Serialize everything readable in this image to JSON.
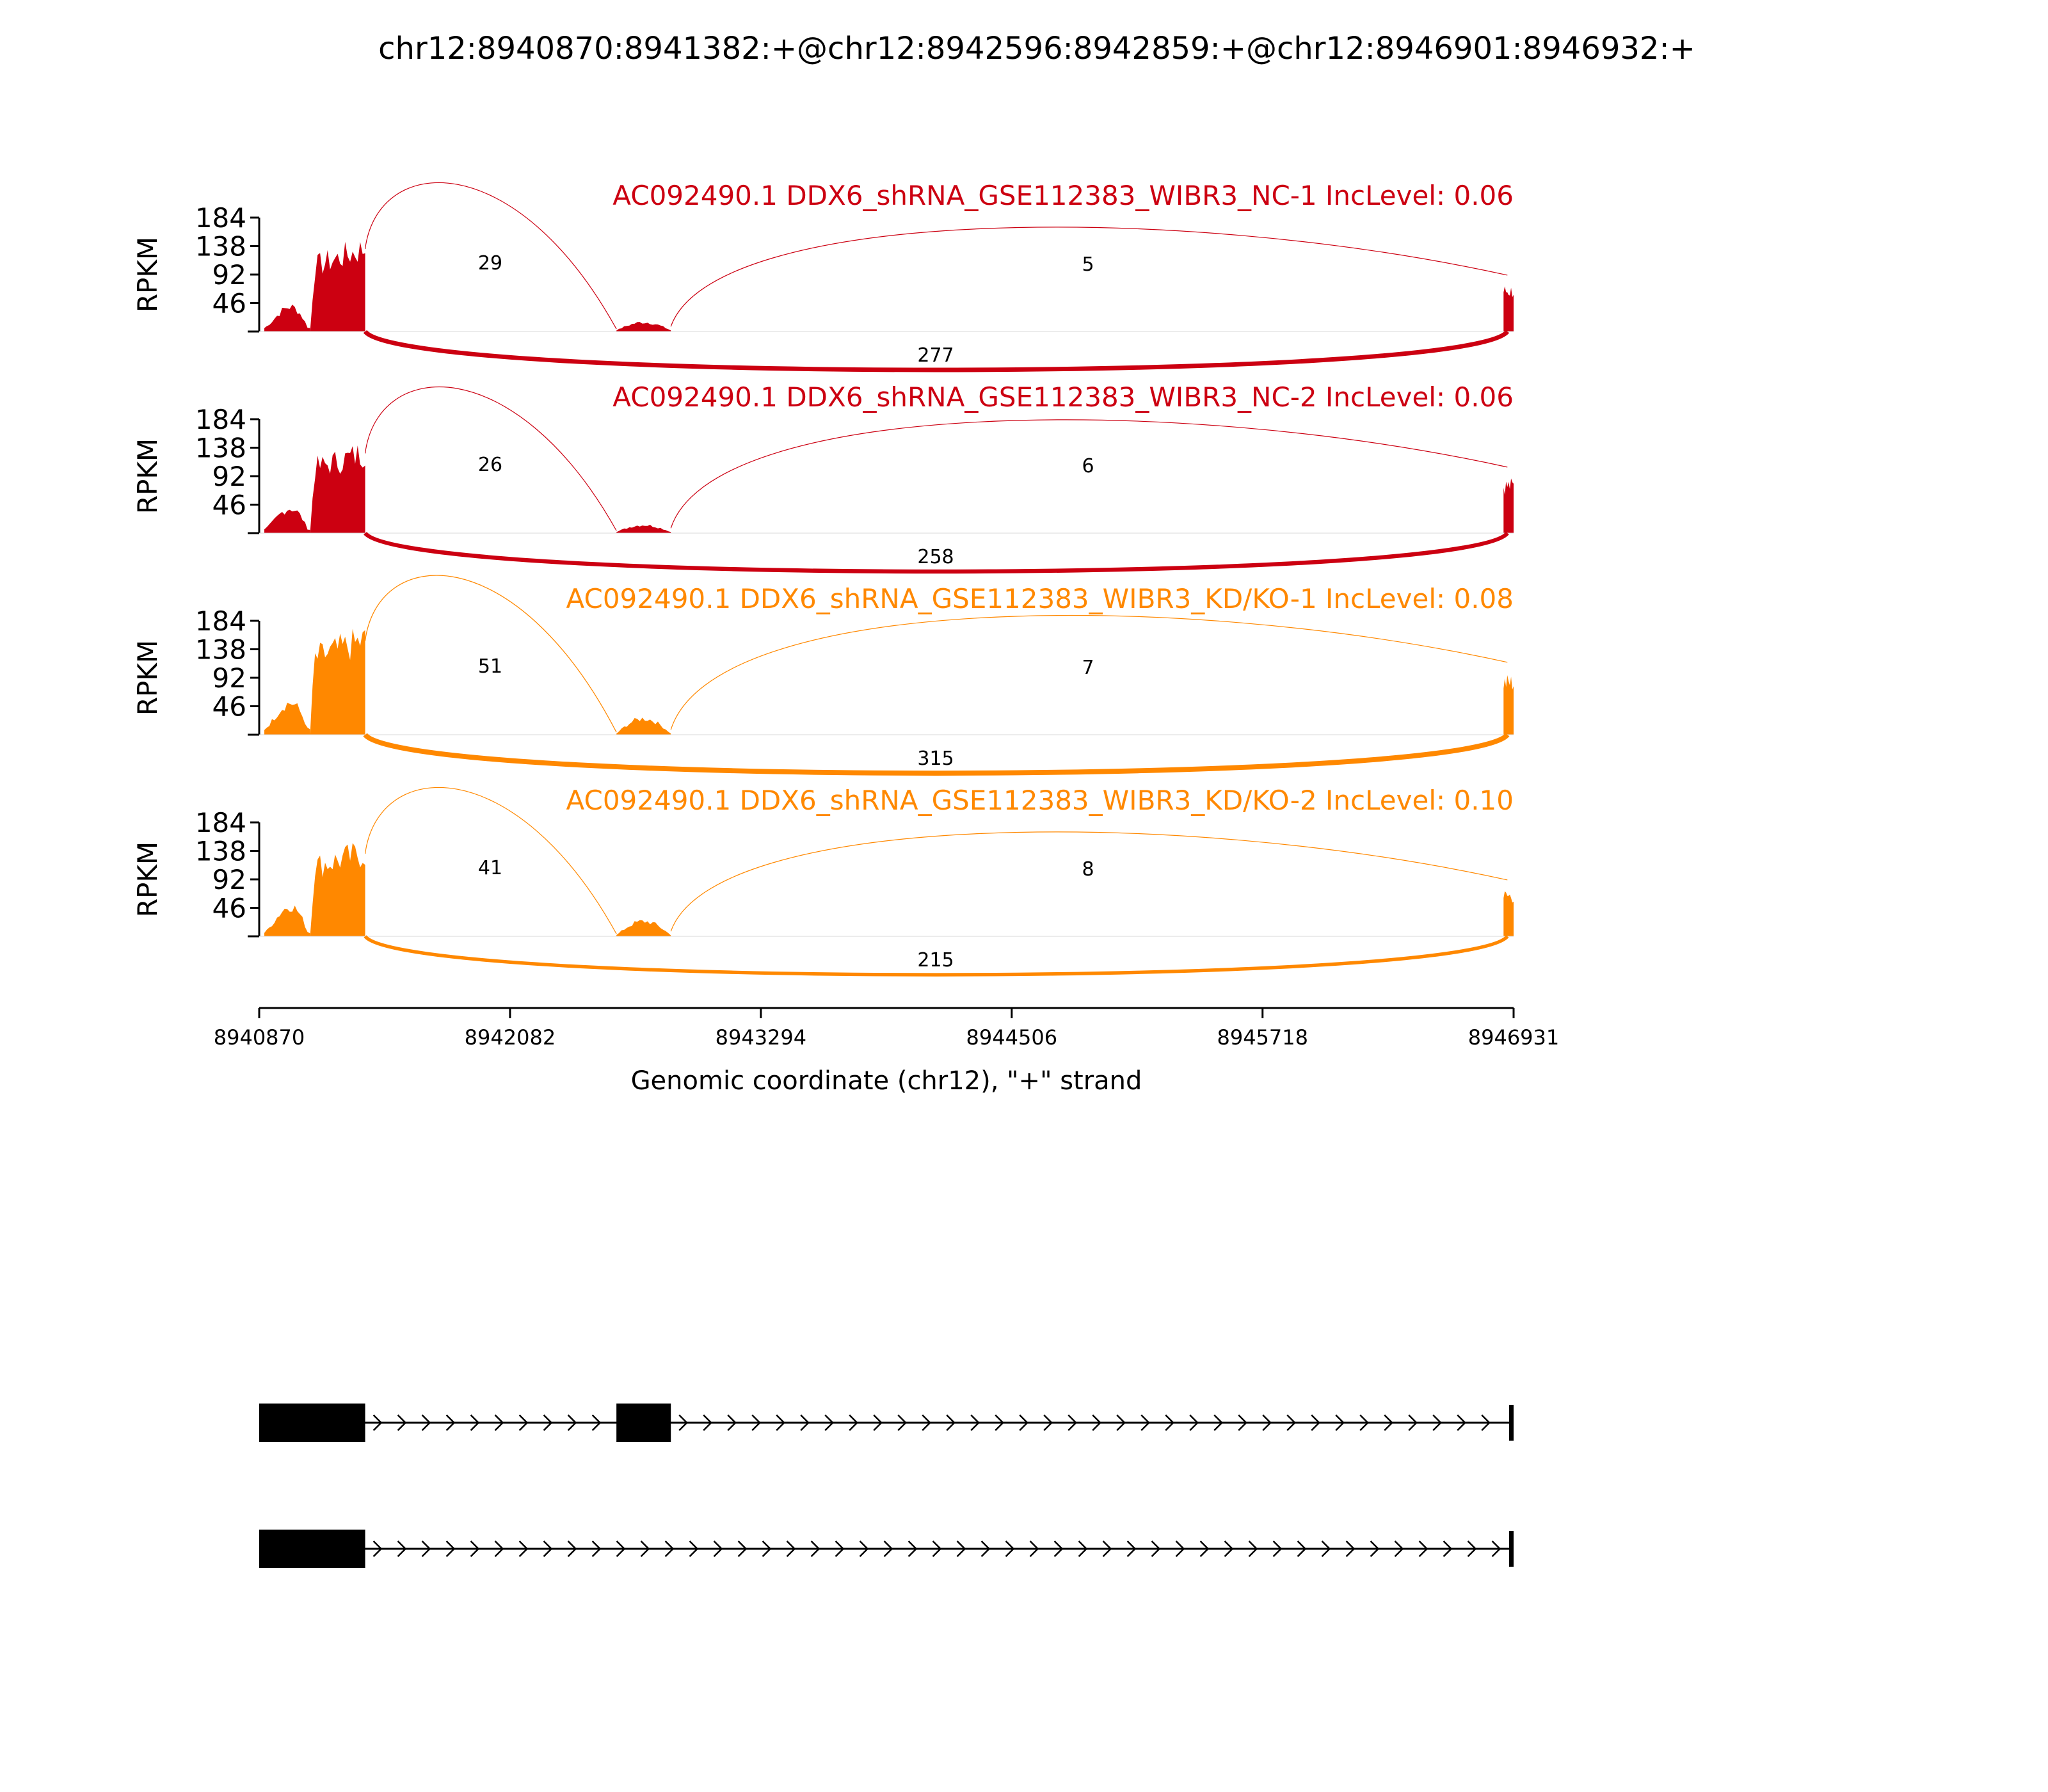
{
  "chart_data": {
    "type": "sashimi",
    "title": "chr12:8940870:8941382:+@chr12:8942596:8942859:+@chr12:8946901:8946932:+",
    "xlabel": "Genomic coordinate (chr12), \"+\" strand",
    "ylabel": "RPKM",
    "xlim": [
      8940870,
      8946931
    ],
    "x_ticks": [
      "8940870",
      "8942082",
      "8943294",
      "8944506",
      "8945718",
      "8946931"
    ],
    "y_ticks": [
      "184",
      "138",
      "92",
      "46"
    ],
    "ylim": [
      0,
      184
    ],
    "exons": [
      {
        "start": 8940870,
        "end": 8941382
      },
      {
        "start": 8942596,
        "end": 8942859
      },
      {
        "start": 8946901,
        "end": 8946932
      }
    ],
    "series": [
      {
        "name": "AC092490.1 DDX6_shRNA_GSE112383_WIBR3_NC-1 IncLevel: 0.06",
        "color": "#cc0011",
        "exon_coverage": [
          [
            40,
            80,
            20
          ],
          [
            110,
            135,
            145
          ],
          [
            10,
            14,
            8
          ],
          [
            70
          ]
        ],
        "junctions": [
          {
            "from": 8941382,
            "to": 8942596,
            "count": "29",
            "position": "above"
          },
          {
            "from": 8942859,
            "to": 8946901,
            "count": "5",
            "position": "above"
          },
          {
            "from": 8941382,
            "to": 8946901,
            "count": "277",
            "position": "below"
          }
        ]
      },
      {
        "name": "AC092490.1 DDX6_shRNA_GSE112383_WIBR3_NC-2 IncLevel: 0.06",
        "color": "#cc0011",
        "exon_coverage": [
          [
            40,
            75,
            20
          ],
          [
            110,
            133,
            140
          ],
          [
            8,
            12,
            8
          ],
          [
            82
          ]
        ],
        "junctions": [
          {
            "from": 8941382,
            "to": 8942596,
            "count": "26",
            "position": "above"
          },
          {
            "from": 8942859,
            "to": 8946901,
            "count": "6",
            "position": "above"
          },
          {
            "from": 8941382,
            "to": 8946901,
            "count": "258",
            "position": "below"
          }
        ]
      },
      {
        "name": "AC092490.1 DDX6_shRNA_GSE112383_WIBR3_KD/KO-1 IncLevel: 0.08",
        "color": "#ff8800",
        "exon_coverage": [
          [
            50,
            100,
            30
          ],
          [
            130,
            170,
            165
          ],
          [
            16,
            26,
            10
          ],
          [
            90
          ]
        ],
        "junctions": [
          {
            "from": 8941382,
            "to": 8942596,
            "count": "51",
            "position": "above"
          },
          {
            "from": 8942859,
            "to": 8946901,
            "count": "7",
            "position": "above"
          },
          {
            "from": 8941382,
            "to": 8946901,
            "count": "315",
            "position": "below"
          }
        ]
      },
      {
        "name": "AC092490.1 DDX6_shRNA_GSE112383_WIBR3_KD/KO-2 IncLevel: 0.10",
        "color": "#ff8800",
        "exon_coverage": [
          [
            50,
            85,
            20
          ],
          [
            120,
            140,
            145
          ],
          [
            14,
            24,
            10
          ],
          [
            70
          ]
        ],
        "junctions": [
          {
            "from": 8941382,
            "to": 8942596,
            "count": "41",
            "position": "above"
          },
          {
            "from": 8942859,
            "to": 8946901,
            "count": "8",
            "position": "above"
          },
          {
            "from": 8941382,
            "to": 8946901,
            "count": "215",
            "position": "below"
          }
        ]
      }
    ],
    "isoforms": [
      {
        "exons": [
          [
            8940870,
            8941382
          ],
          [
            8942596,
            8942859
          ],
          [
            8946901,
            8946931
          ]
        ]
      },
      {
        "exons": [
          [
            8940870,
            8941382
          ],
          [
            8946901,
            8946931
          ]
        ]
      }
    ]
  }
}
